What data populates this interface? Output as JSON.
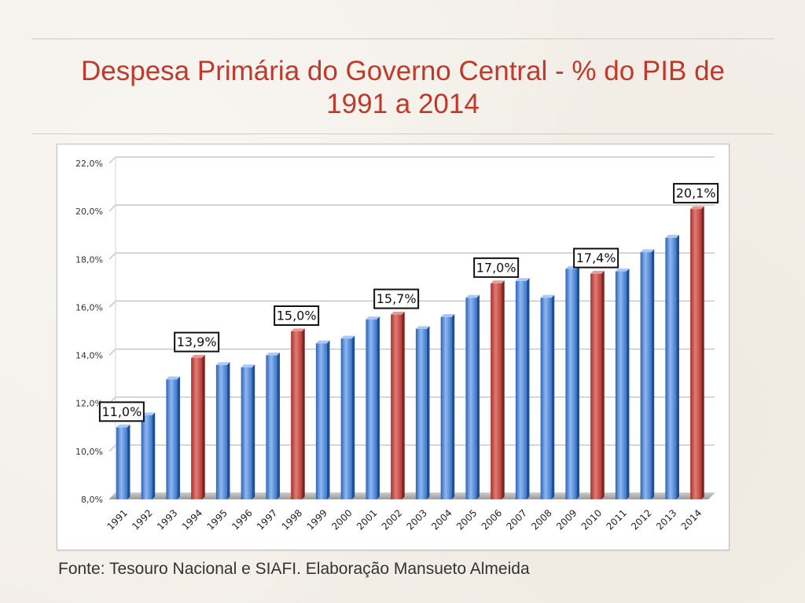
{
  "slide": {
    "title_line1": "Despesa Primária do Governo Central - % do PIB de",
    "title_line2": "1991 a 2014",
    "source": "Fonte: Tesouro Nacional e SIAFI. Elaboração Mansueto Almeida"
  },
  "colors": {
    "title": "#c0392b",
    "blue_bar": "#3f7fd6",
    "red_bar": "#c94a45",
    "grid": "#cfcfcf"
  },
  "chart_data": {
    "type": "bar",
    "title": "",
    "xlabel": "",
    "ylabel": "",
    "ylim": [
      8,
      22
    ],
    "yticks": [
      8,
      10,
      12,
      14,
      16,
      18,
      20,
      22
    ],
    "ytick_labels": [
      "8,0%",
      "10,0%",
      "12,0%",
      "14,0%",
      "16,0%",
      "18,0%",
      "20,0%",
      "22,0%"
    ],
    "grid": true,
    "categories": [
      "1991",
      "1992",
      "1993",
      "1994",
      "1995",
      "1996",
      "1997",
      "1998",
      "1999",
      "2000",
      "2001",
      "2002",
      "2003",
      "2004",
      "2005",
      "2006",
      "2007",
      "2008",
      "2009",
      "2010",
      "2011",
      "2012",
      "2013",
      "2014"
    ],
    "values": [
      11.0,
      11.5,
      13.0,
      13.9,
      13.6,
      13.5,
      14.0,
      15.0,
      14.5,
      14.7,
      15.5,
      15.7,
      15.1,
      15.6,
      16.4,
      17.0,
      17.1,
      16.4,
      17.6,
      17.4,
      17.5,
      18.3,
      18.9,
      20.1
    ],
    "highlight": [
      false,
      false,
      false,
      true,
      false,
      false,
      false,
      true,
      false,
      false,
      false,
      true,
      false,
      false,
      false,
      true,
      false,
      false,
      false,
      true,
      false,
      false,
      false,
      true
    ],
    "annotations": [
      {
        "category": "1991",
        "label": "11,0%"
      },
      {
        "category": "1994",
        "label": "13,9%"
      },
      {
        "category": "1998",
        "label": "15,0%"
      },
      {
        "category": "2002",
        "label": "15,7%"
      },
      {
        "category": "2006",
        "label": "17,0%"
      },
      {
        "category": "2010",
        "label": "17,4%"
      },
      {
        "category": "2014",
        "label": "20,1%"
      }
    ]
  }
}
